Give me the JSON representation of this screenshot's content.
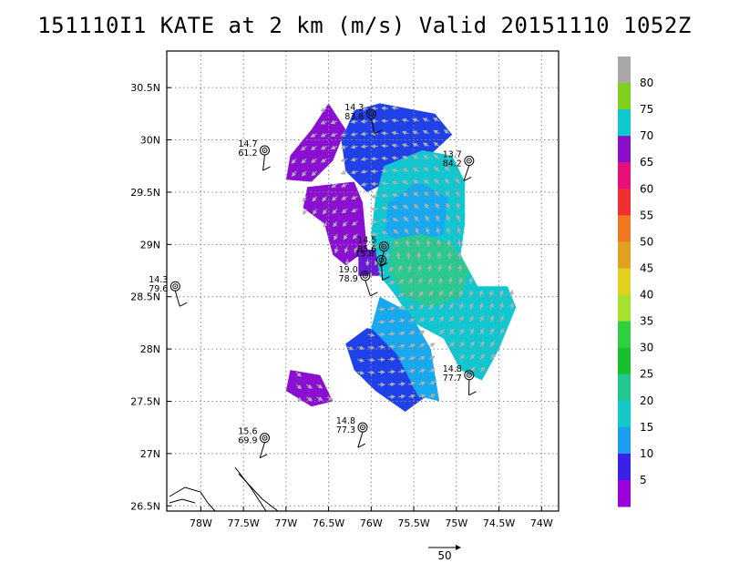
{
  "title": "151110I1 KATE at 2 km (m/s) Valid 20151110 1052Z",
  "map": {
    "lon_range": [
      -78.4,
      -73.8
    ],
    "lat_range": [
      26.45,
      30.85
    ],
    "x_ticks": [
      {
        "lon": -78.0,
        "label": "78W"
      },
      {
        "lon": -77.5,
        "label": "77.5W"
      },
      {
        "lon": -77.0,
        "label": "77W"
      },
      {
        "lon": -76.5,
        "label": "76.5W"
      },
      {
        "lon": -76.0,
        "label": "76W"
      },
      {
        "lon": -75.5,
        "label": "75.5W"
      },
      {
        "lon": -75.0,
        "label": "75W"
      },
      {
        "lon": -74.5,
        "label": "74.5W"
      },
      {
        "lon": -74.0,
        "label": "74W"
      }
    ],
    "y_ticks": [
      {
        "lat": 26.5,
        "label": "26.5N"
      },
      {
        "lat": 27.0,
        "label": "27N"
      },
      {
        "lat": 27.5,
        "label": "27.5N"
      },
      {
        "lat": 28.0,
        "label": "28N"
      },
      {
        "lat": 28.5,
        "label": "28.5N"
      },
      {
        "lat": 29.0,
        "label": "29N"
      },
      {
        "lat": 29.5,
        "label": "29.5N"
      },
      {
        "lat": 30.0,
        "label": "30N"
      },
      {
        "lat": 30.5,
        "label": "30.5N"
      }
    ],
    "gridlines": "dotted"
  },
  "wind_regions": [
    {
      "name": "purple-northwest-band",
      "level": 70,
      "color": "#8a0fd0",
      "points": [
        [
          -76.5,
          30.35
        ],
        [
          -76.3,
          30.1
        ],
        [
          -76.45,
          29.8
        ],
        [
          -76.7,
          29.6
        ],
        [
          -77.0,
          29.62
        ],
        [
          -76.95,
          29.85
        ],
        [
          -76.7,
          30.1
        ]
      ]
    },
    {
      "name": "purple-mid-west",
      "level": 70,
      "color": "#8a0fd0",
      "points": [
        [
          -76.75,
          29.55
        ],
        [
          -76.2,
          29.6
        ],
        [
          -76.1,
          29.4
        ],
        [
          -76.05,
          28.95
        ],
        [
          -76.3,
          28.8
        ],
        [
          -76.45,
          28.9
        ],
        [
          -76.55,
          29.2
        ],
        [
          -76.8,
          29.35
        ]
      ]
    },
    {
      "name": "blue-north-band",
      "level": 10,
      "color": "#2040e8",
      "points": [
        [
          -76.2,
          30.28
        ],
        [
          -75.9,
          30.35
        ],
        [
          -75.25,
          30.25
        ],
        [
          -75.05,
          30.05
        ],
        [
          -75.45,
          29.75
        ],
        [
          -75.8,
          29.6
        ],
        [
          -76.05,
          29.5
        ],
        [
          -76.3,
          29.7
        ],
        [
          -76.35,
          30.0
        ]
      ]
    },
    {
      "name": "cyan-east-core",
      "level": 75,
      "color": "#12c6d0",
      "points": [
        [
          -75.85,
          29.75
        ],
        [
          -75.4,
          29.9
        ],
        [
          -75.05,
          29.85
        ],
        [
          -74.9,
          29.6
        ],
        [
          -74.9,
          29.2
        ],
        [
          -74.95,
          28.9
        ],
        [
          -74.75,
          28.6
        ],
        [
          -74.4,
          28.6
        ],
        [
          -74.3,
          28.4
        ],
        [
          -74.5,
          28.0
        ],
        [
          -74.7,
          27.7
        ],
        [
          -74.95,
          27.8
        ],
        [
          -75.15,
          28.1
        ],
        [
          -75.5,
          28.25
        ],
        [
          -75.75,
          28.55
        ],
        [
          -75.95,
          28.75
        ],
        [
          -76.0,
          29.1
        ],
        [
          -75.95,
          29.45
        ]
      ]
    },
    {
      "name": "sky-blue-north-east",
      "level": 15,
      "color": "#18a8ee",
      "points": [
        [
          -75.8,
          29.4
        ],
        [
          -75.45,
          29.6
        ],
        [
          -75.1,
          29.45
        ],
        [
          -75.15,
          29.1
        ],
        [
          -75.55,
          29.0
        ],
        [
          -75.85,
          29.1
        ]
      ]
    },
    {
      "name": "green-eyewall",
      "level": 25,
      "color": "#2bc890",
      "points": [
        [
          -75.75,
          29.05
        ],
        [
          -75.4,
          29.1
        ],
        [
          -75.05,
          29.0
        ],
        [
          -74.85,
          28.75
        ],
        [
          -74.95,
          28.5
        ],
        [
          -75.3,
          28.4
        ],
        [
          -75.6,
          28.5
        ],
        [
          -75.8,
          28.75
        ]
      ]
    },
    {
      "name": "blue-south-band",
      "level": 10,
      "color": "#2040e8",
      "points": [
        [
          -76.3,
          28.05
        ],
        [
          -76.05,
          28.2
        ],
        [
          -75.75,
          28.15
        ],
        [
          -75.55,
          27.85
        ],
        [
          -75.35,
          27.55
        ],
        [
          -75.6,
          27.4
        ],
        [
          -75.95,
          27.6
        ],
        [
          -76.2,
          27.8
        ]
      ]
    },
    {
      "name": "sky-blue-south",
      "level": 15,
      "color": "#18a8ee",
      "points": [
        [
          -75.9,
          28.5
        ],
        [
          -75.55,
          28.35
        ],
        [
          -75.3,
          28.0
        ],
        [
          -75.2,
          27.5
        ],
        [
          -75.45,
          27.55
        ],
        [
          -75.7,
          27.95
        ],
        [
          -76.0,
          28.2
        ]
      ]
    },
    {
      "name": "purple-southwest",
      "level": 70,
      "color": "#8a0fd0",
      "points": [
        [
          -76.95,
          27.8
        ],
        [
          -76.6,
          27.75
        ],
        [
          -76.45,
          27.5
        ],
        [
          -76.7,
          27.45
        ],
        [
          -77.0,
          27.6
        ]
      ]
    },
    {
      "name": "purple-center-patch",
      "level": 70,
      "color": "#6b1ad8",
      "points": [
        [
          -76.15,
          28.95
        ],
        [
          -75.95,
          28.95
        ],
        [
          -75.9,
          28.7
        ],
        [
          -76.15,
          28.7
        ]
      ]
    }
  ],
  "stations": [
    {
      "lon": -76.0,
      "lat": 30.25,
      "wind": "14.3",
      "p": "83.6"
    },
    {
      "lon": -77.25,
      "lat": 29.9,
      "wind": "14.7",
      "p": "61.2"
    },
    {
      "lon": -74.85,
      "lat": 29.8,
      "wind": "13.7",
      "p": "84.2"
    },
    {
      "lon": -75.85,
      "lat": 28.98,
      "wind": "14.5",
      "p": "85.6"
    },
    {
      "lon": -75.88,
      "lat": 28.85,
      "wind": "15.8",
      "p": ""
    },
    {
      "lon": -76.07,
      "lat": 28.7,
      "wind": "19.0",
      "p": "78.9"
    },
    {
      "lon": -78.3,
      "lat": 28.6,
      "wind": "14.3",
      "p": "79.6"
    },
    {
      "lon": -74.85,
      "lat": 27.75,
      "wind": "14.8",
      "p": "77.7"
    },
    {
      "lon": -76.1,
      "lat": 27.25,
      "wind": "14.8",
      "p": "77.3"
    },
    {
      "lon": -77.25,
      "lat": 27.15,
      "wind": "15.6",
      "p": "69.9"
    }
  ],
  "colorbar": {
    "levels": [
      {
        "value": "",
        "color": "#a000d8"
      },
      {
        "value": "5",
        "color": "#7800e0"
      },
      {
        "value": "",
        "color": "#3030f0"
      },
      {
        "value": "10",
        "color": "#2060f0"
      },
      {
        "value": "",
        "color": "#1898f0"
      },
      {
        "value": "15",
        "color": "#12b8e8"
      },
      {
        "value": "",
        "color": "#14c8c8"
      },
      {
        "value": "20",
        "color": "#20c8a8"
      },
      {
        "value": "",
        "color": "#30c888"
      },
      {
        "value": "25",
        "color": "#28c860"
      },
      {
        "value": "",
        "color": "#20c830"
      },
      {
        "value": "30",
        "color": "#40d840"
      },
      {
        "value": "",
        "color": "#88e040"
      },
      {
        "value": "35",
        "color": "#c8e030"
      },
      {
        "value": "",
        "color": "#e0d030"
      },
      {
        "value": "40",
        "color": "#e0a830"
      },
      {
        "value": "",
        "color": "#f08030"
      },
      {
        "value": "45",
        "color": "#f05030"
      },
      {
        "value": "",
        "color": "#f02840"
      },
      {
        "value": "50",
        "color": "#e01080"
      },
      {
        "value": "",
        "color": "#d01098"
      },
      {
        "value": "55",
        "color": "#9010c8"
      },
      {
        "value": "",
        "color": "#10c8d0"
      },
      {
        "value": "60",
        "color": "#80e020"
      },
      {
        "value": "",
        "color": "#a0a0a0"
      }
    ],
    "labels": [
      "5",
      "10",
      "15",
      "20",
      "25",
      "30",
      "35",
      "40",
      "45",
      "50",
      "55",
      "60",
      "65",
      "70",
      "75",
      "80"
    ],
    "colors": [
      "#9a00d8",
      "#3a20e8",
      "#1a9ef0",
      "#14c8c8",
      "#20c890",
      "#18c030",
      "#30d040",
      "#a8e030",
      "#e0d020",
      "#e0a020",
      "#f07820",
      "#f03030",
      "#e8107a",
      "#8a10c8",
      "#10c8d0",
      "#80d020",
      "#a8a8a8"
    ]
  },
  "reference_vector": {
    "label": "50"
  }
}
